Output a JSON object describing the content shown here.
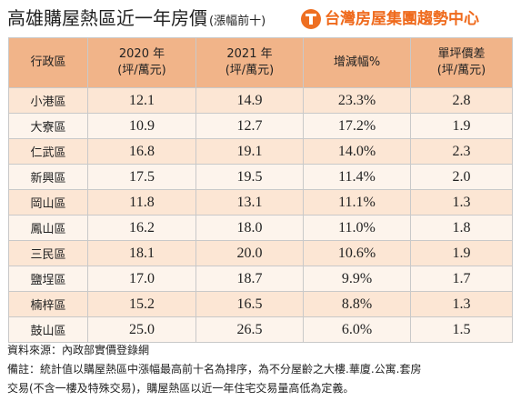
{
  "header": {
    "title": "高雄購屋熱區近一年房價",
    "title_note": "(漲幅前十)",
    "brand_name": "台灣房屋集團趨勢中心",
    "brand_color": "#ef6a1c"
  },
  "table": {
    "columns": [
      {
        "line1": "行政區",
        "line2": ""
      },
      {
        "line1": "2020 年",
        "line2": "(坪/萬元)"
      },
      {
        "line1": "2021 年",
        "line2": "(坪/萬元)"
      },
      {
        "line1": "增減幅%",
        "line2": ""
      },
      {
        "line1": "單坪價差",
        "line2": "(坪/萬元)"
      }
    ],
    "rows": [
      {
        "district": "小港區",
        "y2020": "12.1",
        "y2021": "14.9",
        "change": "23.3%",
        "diff": "2.8"
      },
      {
        "district": "大寮區",
        "y2020": "10.9",
        "y2021": "12.7",
        "change": "17.2%",
        "diff": "1.9"
      },
      {
        "district": "仁武區",
        "y2020": "16.8",
        "y2021": "19.1",
        "change": "14.0%",
        "diff": "2.3"
      },
      {
        "district": "新興區",
        "y2020": "17.5",
        "y2021": "19.5",
        "change": "11.4%",
        "diff": "2.0"
      },
      {
        "district": "岡山區",
        "y2020": "11.8",
        "y2021": "13.1",
        "change": "11.1%",
        "diff": "1.3"
      },
      {
        "district": "鳳山區",
        "y2020": "16.2",
        "y2021": "18.0",
        "change": "11.0%",
        "diff": "1.8"
      },
      {
        "district": "三民區",
        "y2020": "18.1",
        "y2021": "20.0",
        "change": "10.6%",
        "diff": "1.9"
      },
      {
        "district": "鹽埕區",
        "y2020": "17.0",
        "y2021": "18.7",
        "change": "9.9%",
        "diff": "1.7"
      },
      {
        "district": "楠梓區",
        "y2020": "15.2",
        "y2021": "16.5",
        "change": "8.8%",
        "diff": "1.3"
      },
      {
        "district": "鼓山區",
        "y2020": "25.0",
        "y2021": "26.5",
        "change": "6.0%",
        "diff": "1.5"
      }
    ]
  },
  "footnotes": {
    "source": "資料來源：內政部實價登錄網",
    "note_line1": "備註：統計值以購屋熱區中漲幅最高前十名為排序，為不分屋齡之大樓.華廈.公寓.套房",
    "note_line2": "交易(不含一樓及特殊交易)，購屋熱區以近一年住宅交易量高低為定義。"
  }
}
